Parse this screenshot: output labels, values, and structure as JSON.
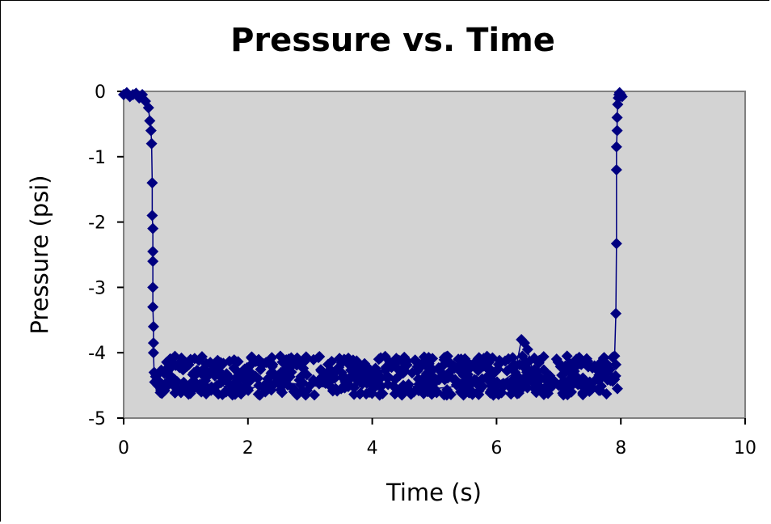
{
  "chart_data": {
    "type": "scatter",
    "title": "Pressure vs. Time",
    "xlabel": "Time (s)",
    "ylabel": "Pressure (psi)",
    "xlim": [
      0,
      10
    ],
    "ylim": [
      -5,
      0
    ],
    "x_ticks": [
      "0",
      "2",
      "4",
      "6",
      "8",
      "10"
    ],
    "y_ticks": [
      "0",
      "-1",
      "-2",
      "-3",
      "-4",
      "-5"
    ],
    "grid": false,
    "legend": "none",
    "plot_background": "#d3d3d3",
    "marker": "diamond",
    "series": [
      {
        "color": "#000080",
        "x": [
          0.0,
          0.05,
          0.1,
          0.15,
          0.2,
          0.25,
          0.3,
          0.35,
          0.4,
          0.42,
          0.44,
          0.45,
          0.46,
          0.46,
          0.47,
          0.47,
          0.47,
          0.47,
          0.47,
          0.48,
          0.48,
          0.48,
          0.49,
          0.5,
          0.55,
          0.6,
          0.7,
          0.8,
          1.0,
          1.25,
          1.5,
          2.0,
          2.5,
          3.0,
          3.5,
          4.0,
          4.5,
          5.0,
          5.5,
          6.0,
          6.3,
          6.4,
          6.45,
          6.5,
          6.6,
          7.0,
          7.5,
          7.85,
          7.9,
          7.92,
          7.93,
          7.93,
          7.93,
          7.94,
          7.94,
          7.95,
          7.96,
          7.97,
          7.98,
          8.0,
          8.02
        ],
        "y": [
          -0.05,
          -0.02,
          -0.08,
          -0.05,
          -0.03,
          -0.1,
          -0.05,
          -0.15,
          -0.25,
          -0.45,
          -0.6,
          -0.8,
          -1.4,
          -1.9,
          -2.1,
          -2.45,
          -2.6,
          -3.0,
          -3.3,
          -3.6,
          -3.85,
          -4.0,
          -4.3,
          -4.45,
          -4.5,
          -4.55,
          -4.45,
          -4.5,
          -4.55,
          -4.6,
          -4.5,
          -4.55,
          -4.45,
          -4.5,
          -4.55,
          -4.5,
          -4.5,
          -4.55,
          -4.5,
          -4.5,
          -4.3,
          -3.8,
          -3.85,
          -3.95,
          -4.35,
          -4.5,
          -4.45,
          -4.4,
          -4.05,
          -3.4,
          -2.33,
          -1.2,
          -0.85,
          -0.6,
          -0.4,
          -0.2,
          -0.1,
          -0.05,
          -0.02,
          -0.05,
          -0.08
        ],
        "noise_band": {
          "x_start": 0.5,
          "x_end": 7.95,
          "y_min": -4.65,
          "y_max": -4.05
        }
      }
    ]
  }
}
